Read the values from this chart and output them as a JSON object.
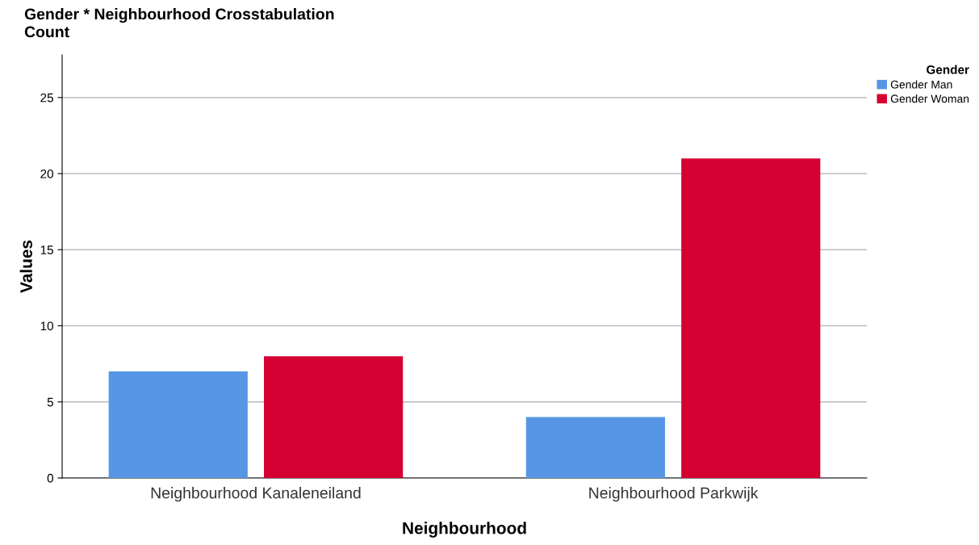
{
  "chart_data": {
    "type": "bar",
    "title": "Gender * Neighbourhood Crosstabulation",
    "subtitle": "Count",
    "xlabel": "Neighbourhood",
    "ylabel": "Values",
    "legend_title": "Gender",
    "categories": [
      "Neighbourhood Kanaleneiland",
      "Neighbourhood Parkwijk"
    ],
    "series": [
      {
        "name": "Gender Man",
        "color": "#5696e5",
        "values": [
          7,
          4
        ]
      },
      {
        "name": "Gender Woman",
        "color": "#d50032",
        "values": [
          8,
          21
        ]
      }
    ],
    "ylim": [
      0,
      27.8
    ],
    "yticks": [
      0,
      5,
      10,
      15,
      20,
      25
    ],
    "grid": "y",
    "legend": "top right"
  }
}
